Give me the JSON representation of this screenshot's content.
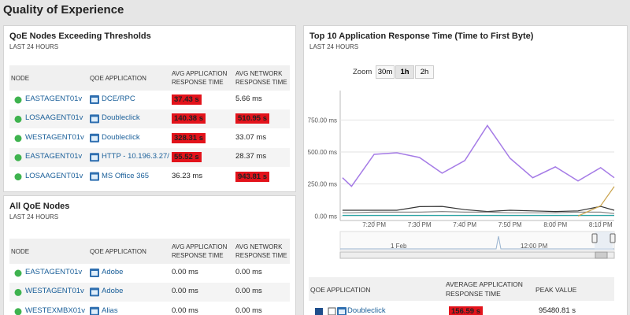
{
  "page_title": "Quality of Experience",
  "panels": [
    {
      "title": "QoE Nodes Exceeding Thresholds",
      "subtitle": "LAST 24 HOURS",
      "columns": [
        "NODE",
        "QOE APPLICATION",
        "AVG APPLICATION RESPONSE TIME",
        "AVG NETWORK RESPONSE TIME"
      ],
      "rows": [
        [
          "EASTAGENT01v",
          "DCE/RPC",
          "37.43 s",
          "5.66 ms"
        ],
        [
          "LOSAAGENT01v",
          "Doubleclick",
          "140.38 s",
          "510.95 s"
        ],
        [
          "WESTAGENT01v",
          "Doubleclick",
          "328.31 s",
          "33.07 ms"
        ],
        [
          "EASTAGENT01v",
          "HTTP - 10.196.3.27/",
          "55.52 s",
          "28.37 ms"
        ],
        [
          "LOSAAGENT01v",
          "MS Office 365",
          "36.23 ms",
          "943.81 s"
        ]
      ],
      "alerts": [
        [
          2
        ],
        [
          2,
          3
        ],
        [
          2
        ],
        [
          2
        ],
        [
          3
        ]
      ]
    },
    {
      "title": "All QoE Nodes",
      "subtitle": "LAST 24 HOURS",
      "columns": [
        "NODE",
        "QOE APPLICATION",
        "AVG APPLICATION RESPONSE TIME",
        "AVG NETWORK RESPONSE TIME"
      ],
      "rows": [
        [
          "EASTAGENT01v",
          "Adobe",
          "0.00 ms",
          "0.00 ms"
        ],
        [
          "WESTAGENT01v",
          "Adobe",
          "0.00 ms",
          "0.00 ms"
        ],
        [
          "WESTEXMBX01v",
          "Alias",
          "0.00 ms",
          "0.00 ms"
        ]
      ],
      "alerts": [
        [],
        [],
        []
      ]
    }
  ],
  "chart_panel": {
    "title": "Top 10 Application Response Time (Time to First Byte)",
    "subtitle": "LAST 24 HOURS",
    "zoom": {
      "label": "Zoom",
      "options": [
        "30m",
        "1h",
        "2h"
      ],
      "selected": 1
    },
    "navigator_labels": [
      "1 Feb",
      "12:00 PM"
    ],
    "table": {
      "columns": [
        "QOE APPLICATION",
        "AVERAGE APPLICATION RESPONSE TIME",
        "PEAK VALUE"
      ],
      "rows": [
        [
          "Doubleclick",
          "156.59 s",
          "95480.81 s"
        ]
      ],
      "row_colors": [
        "#1f4e8c"
      ],
      "alerts": [
        [
          1
        ]
      ]
    }
  },
  "chart_data": {
    "type": "line",
    "x": [
      13,
      15,
      20,
      25,
      30,
      35,
      40,
      45,
      50,
      55,
      60,
      65,
      70,
      73
    ],
    "series": [
      {
        "color": "#a57be6",
        "values": [
          299,
          232,
          482,
          494,
          457,
          335,
          433,
          707,
          451,
          299,
          384,
          274,
          378,
          299
        ]
      },
      {
        "color": "#333333",
        "values": [
          45,
          45,
          45,
          45,
          73,
          75,
          50,
          35,
          45,
          40,
          35,
          40,
          75,
          45
        ]
      },
      {
        "color": "#8a8a8a",
        "values": [
          25,
          25,
          30,
          30,
          30,
          35,
          30,
          30,
          25,
          25,
          25,
          30,
          30,
          20
        ]
      },
      {
        "color": "#2aa5a5",
        "values": [
          5,
          5,
          5,
          5,
          5,
          5,
          5,
          5,
          5,
          5,
          5,
          5,
          5,
          5
        ]
      },
      {
        "color": "#c9a24a",
        "values": [
          null,
          null,
          null,
          null,
          null,
          null,
          null,
          null,
          null,
          null,
          null,
          0,
          80,
          230
        ]
      }
    ],
    "xlim": [
      12.5,
      73
    ],
    "xticks": [
      {
        "value": 20,
        "label": "7:20 PM"
      },
      {
        "value": 30,
        "label": "7:30 PM"
      },
      {
        "value": 40,
        "label": "7:40 PM"
      },
      {
        "value": 50,
        "label": "7:50 PM"
      },
      {
        "value": 60,
        "label": "8:00 PM"
      },
      {
        "value": 70,
        "label": "8:10 PM"
      }
    ],
    "ylim": [
      -35,
      980
    ],
    "yticks": [
      {
        "value": 0,
        "label": "0.00 ms"
      },
      {
        "value": 250,
        "label": "250.00 ms"
      },
      {
        "value": 500,
        "label": "500.00 ms"
      },
      {
        "value": 750,
        "label": "750.00 ms"
      }
    ],
    "grid": true
  }
}
